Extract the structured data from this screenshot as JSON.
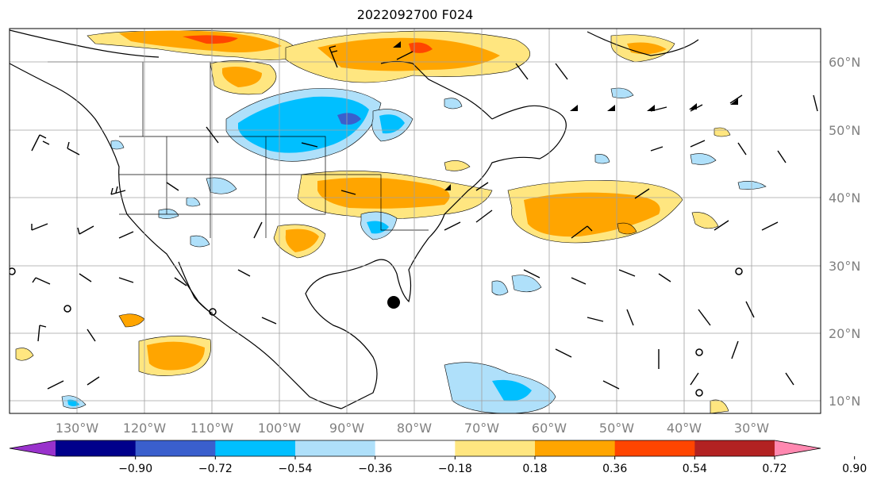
{
  "title": "2022092700 F024",
  "lat_labels": [
    "60°N",
    "50°N",
    "40°N",
    "30°N",
    "20°N",
    "10°N"
  ],
  "lon_labels": [
    "130°W",
    "120°W",
    "110°W",
    "100°W",
    "90°W",
    "80°W",
    "70°W",
    "60°W",
    "50°W",
    "40°W",
    "30°W"
  ],
  "colorbar": {
    "colors": [
      "#9932cc",
      "#00008b",
      "#3a5fcd",
      "#00bfff",
      "#afe0fa",
      "#ffffff",
      "#ffe680",
      "#ffa500",
      "#ff4500",
      "#b22222",
      "#ff88b0"
    ],
    "tick_labels": [
      "−0.90",
      "−0.72",
      "−0.54",
      "−0.36",
      "−0.18",
      "0.18",
      "0.36",
      "0.54",
      "0.72",
      "0.90"
    ]
  },
  "legend_colors": {
    "land_line": "#000000",
    "grid": "#a0a0a0",
    "marker": "#000000"
  }
}
